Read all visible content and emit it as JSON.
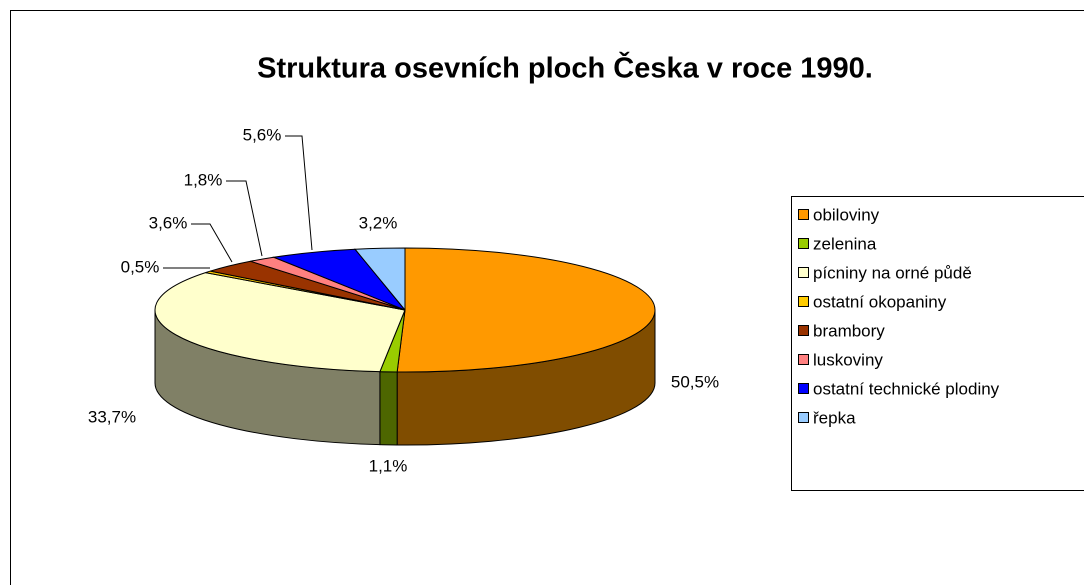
{
  "chart_data": {
    "type": "pie",
    "title": "Struktura osevních ploch Česka v roce 1990.",
    "categories": [
      "obiloviny",
      "zelenina",
      "pícniny na orné půdě",
      "ostatní okopaniny",
      "brambory",
      "luskoviny",
      "ostatní technické plodiny",
      "řepka"
    ],
    "values": [
      50.5,
      1.1,
      33.7,
      0.5,
      3.6,
      1.8,
      5.6,
      3.2
    ],
    "value_labels": [
      "50,5%",
      "1,1%",
      "33,7%",
      "0,5%",
      "3,6%",
      "1,8%",
      "5,6%",
      "3,2%"
    ],
    "colors": [
      "#FF9900",
      "#99CC00",
      "#FFFFCC",
      "#FFCC00",
      "#993300",
      "#FF8080",
      "#0000FF",
      "#99CCFF"
    ],
    "legend": "right"
  }
}
